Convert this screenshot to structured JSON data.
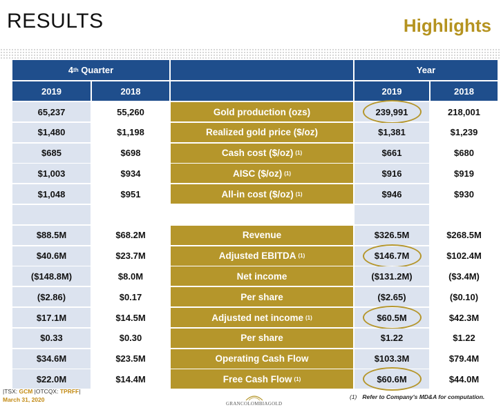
{
  "header": {
    "title": "RESULTS",
    "subtitle": "Highlights"
  },
  "table": {
    "quarter_header": "4",
    "quarter_header_sup": "th",
    "quarter_header_rest": " Quarter",
    "year_header": "Year",
    "col_years": [
      "2019",
      "2018"
    ],
    "rows": [
      {
        "q2019": "65,237",
        "q2018": "55,260",
        "label": "Gold production (ozs)",
        "note": "",
        "y2019": "239,991",
        "y2018": "218,001",
        "circled": true
      },
      {
        "q2019": "$1,480",
        "q2018": "$1,198",
        "label": "Realized gold price ($/oz)",
        "note": "",
        "y2019": "$1,381",
        "y2018": "$1,239",
        "circled": false
      },
      {
        "q2019": "$685",
        "q2018": "$698",
        "label": "Cash cost ($/oz)",
        "note": "(1)",
        "y2019": "$661",
        "y2018": "$680",
        "circled": false
      },
      {
        "q2019": "$1,003",
        "q2018": "$934",
        "label": "AISC ($/oz)",
        "note": "(1)",
        "y2019": "$916",
        "y2018": "$919",
        "circled": false
      },
      {
        "q2019": "$1,048",
        "q2018": "$951",
        "label": "All-in cost ($/oz)",
        "note": "(1)",
        "y2019": "$946",
        "y2018": "$930",
        "circled": false
      },
      {
        "spacer": true
      },
      {
        "q2019": "$88.5M",
        "q2018": "$68.2M",
        "label": "Revenue",
        "note": "",
        "y2019": "$326.5M",
        "y2018": "$268.5M",
        "circled": false
      },
      {
        "q2019": "$40.6M",
        "q2018": "$23.7M",
        "label": "Adjusted EBITDA",
        "note": "(1)",
        "y2019": "$146.7M",
        "y2018": "$102.4M",
        "circled": true
      },
      {
        "q2019": "($148.8M)",
        "q2018": "$8.0M",
        "label": "Net income",
        "note": "",
        "y2019": "($131.2M)",
        "y2018": "($3.4M)",
        "circled": false
      },
      {
        "q2019": "($2.86)",
        "q2018": "$0.17",
        "label": "Per share",
        "note": "",
        "y2019": "($2.65)",
        "y2018": "($0.10)",
        "circled": false
      },
      {
        "q2019": "$17.1M",
        "q2018": "$14.5M",
        "label": "Adjusted net income",
        "note": "(1)",
        "y2019": "$60.5M",
        "y2018": "$42.3M",
        "circled": true
      },
      {
        "q2019": "$0.33",
        "q2018": "$0.30",
        "label": "Per share",
        "note": "",
        "y2019": "$1.22",
        "y2018": "$1.22",
        "circled": false
      },
      {
        "q2019": "$34.6M",
        "q2018": "$23.5M",
        "label": "Operating Cash Flow",
        "note": "",
        "y2019": "$103.3M",
        "y2018": "$79.4M",
        "circled": false
      },
      {
        "q2019": "$22.0M",
        "q2018": "$14.4M",
        "label": "Free Cash Flow",
        "note": "(1)",
        "y2019": "$60.6M",
        "y2018": "$44.0M",
        "circled": true
      }
    ]
  },
  "footer": {
    "tickers_prefix": "|TSX: ",
    "tsx": "GCM",
    "mid": " |OTCQX: ",
    "otcqx": "TPRFF",
    "suffix": "|",
    "date": "March 31, 2020",
    "logo_text": "GRANCOLOMBIAGOLD",
    "note_number": "(1)",
    "note_text": "Refer to Company's MD&A for computation.",
    "colors": {
      "navy": "#1f4e8c",
      "gold": "#b5962b",
      "light": "#dce3ef"
    }
  }
}
